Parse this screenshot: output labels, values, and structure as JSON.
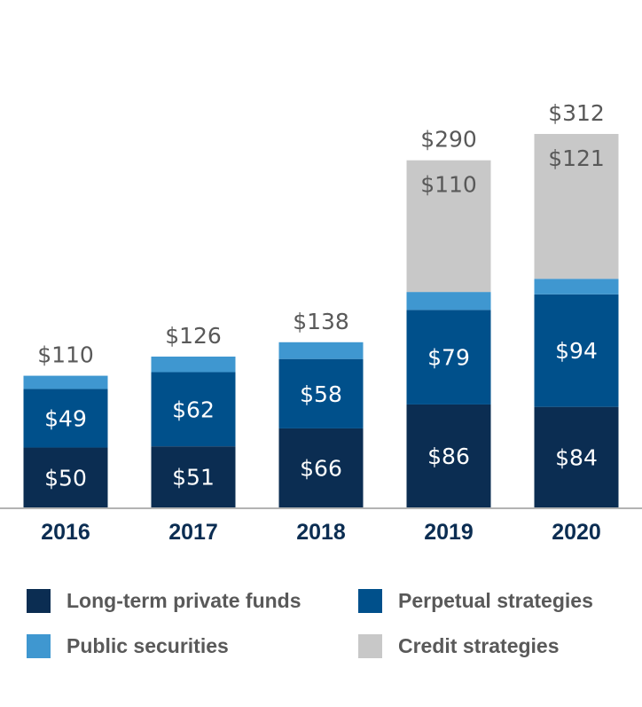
{
  "chart_data": {
    "type": "bar",
    "stacked": true,
    "title": "",
    "xlabel": "",
    "ylabel": "",
    "categories": [
      "2016",
      "2017",
      "2018",
      "2019",
      "2020"
    ],
    "ylim": [
      0,
      312
    ],
    "grid": false,
    "legend_position": "bottom",
    "series": [
      {
        "name": "Long-term private funds",
        "color": "#0b2d52",
        "values": [
          50,
          51,
          66,
          86,
          84
        ],
        "labels": [
          "$50",
          "$51",
          "$66",
          "$86",
          "$84"
        ]
      },
      {
        "name": "Perpetual strategies",
        "color": "#00508b",
        "values": [
          49,
          62,
          58,
          79,
          94
        ],
        "labels": [
          "$49",
          "$62",
          "$58",
          "$79",
          "$94"
        ]
      },
      {
        "name": "Public securities",
        "color": "#3f97d0",
        "values": [
          11,
          13,
          14,
          15,
          13
        ],
        "labels": [
          "",
          "",
          "",
          "",
          ""
        ]
      },
      {
        "name": "Credit strategies",
        "color": "#c8c8c8",
        "values": [
          0,
          0,
          0,
          110,
          121
        ],
        "labels": [
          "",
          "",
          "",
          "$110",
          "$121"
        ]
      }
    ],
    "totals": [
      "$110",
      "$126",
      "$138",
      "$290",
      "$312"
    ]
  },
  "colors": {
    "axis": "#b3b3b3",
    "tick_text": "#0b2d52",
    "total_text": "#595959",
    "legend_text": "#595959"
  }
}
